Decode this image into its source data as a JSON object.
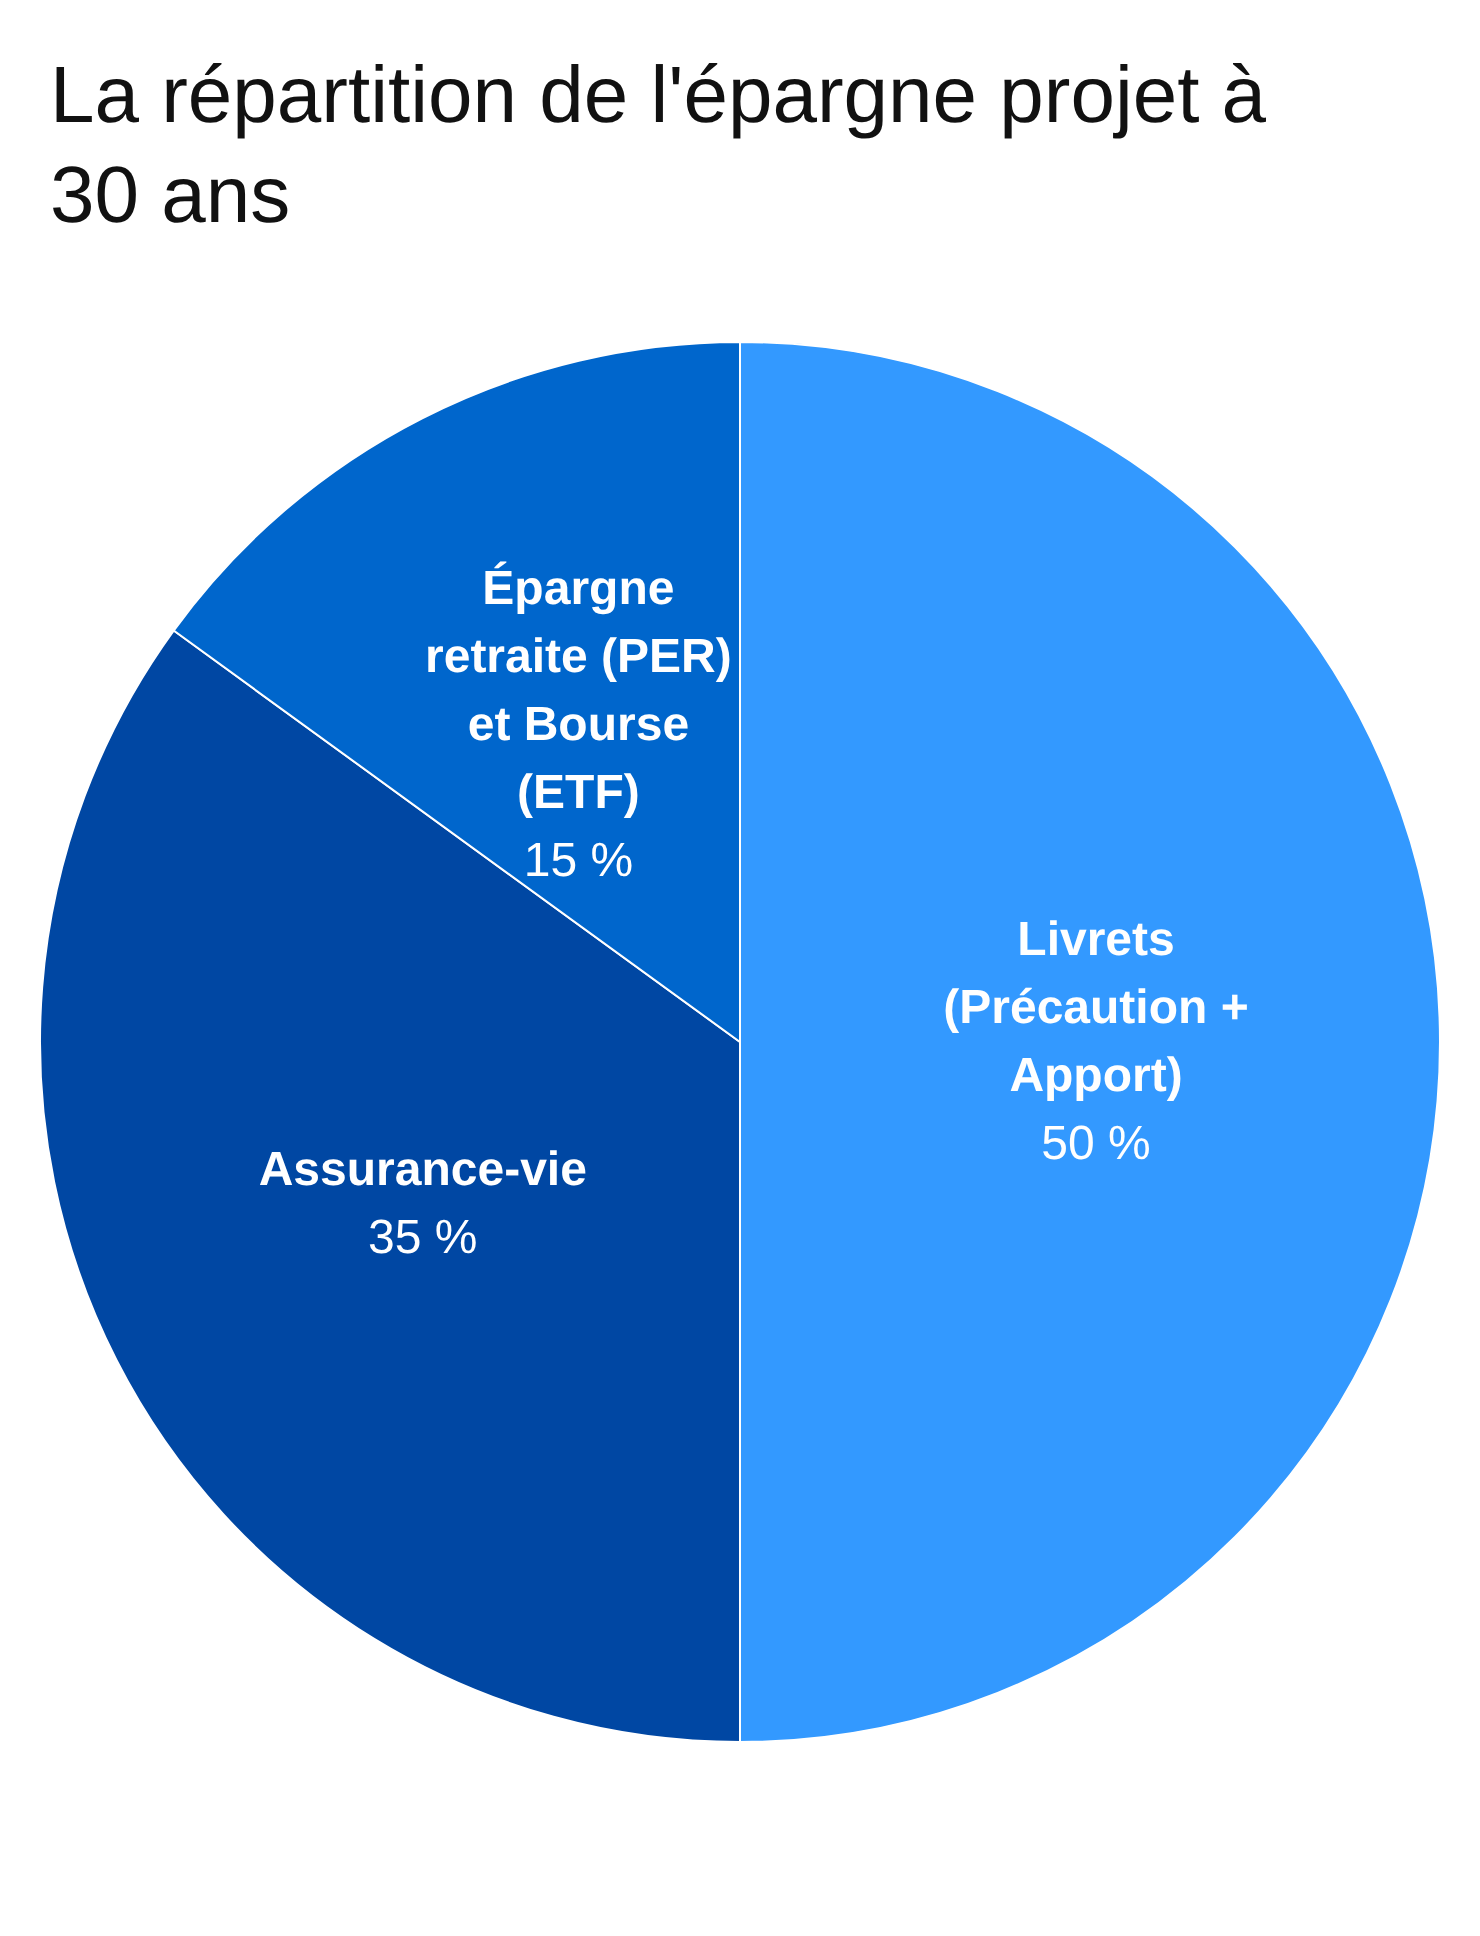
{
  "chart_data": {
    "type": "pie",
    "title": "La répartition de l'épargne projet à 30 ans",
    "categories": [
      "Livrets (Précaution + Apport)",
      "Assurance-vie",
      "Épargne retraite (PER) et Bourse (ETF)"
    ],
    "values": [
      50,
      35,
      15
    ],
    "colors": [
      "#3399ff",
      "#0047a3",
      "#0066cc"
    ],
    "value_labels": [
      "50 %",
      "35 %",
      "15 %"
    ],
    "legend": false
  }
}
